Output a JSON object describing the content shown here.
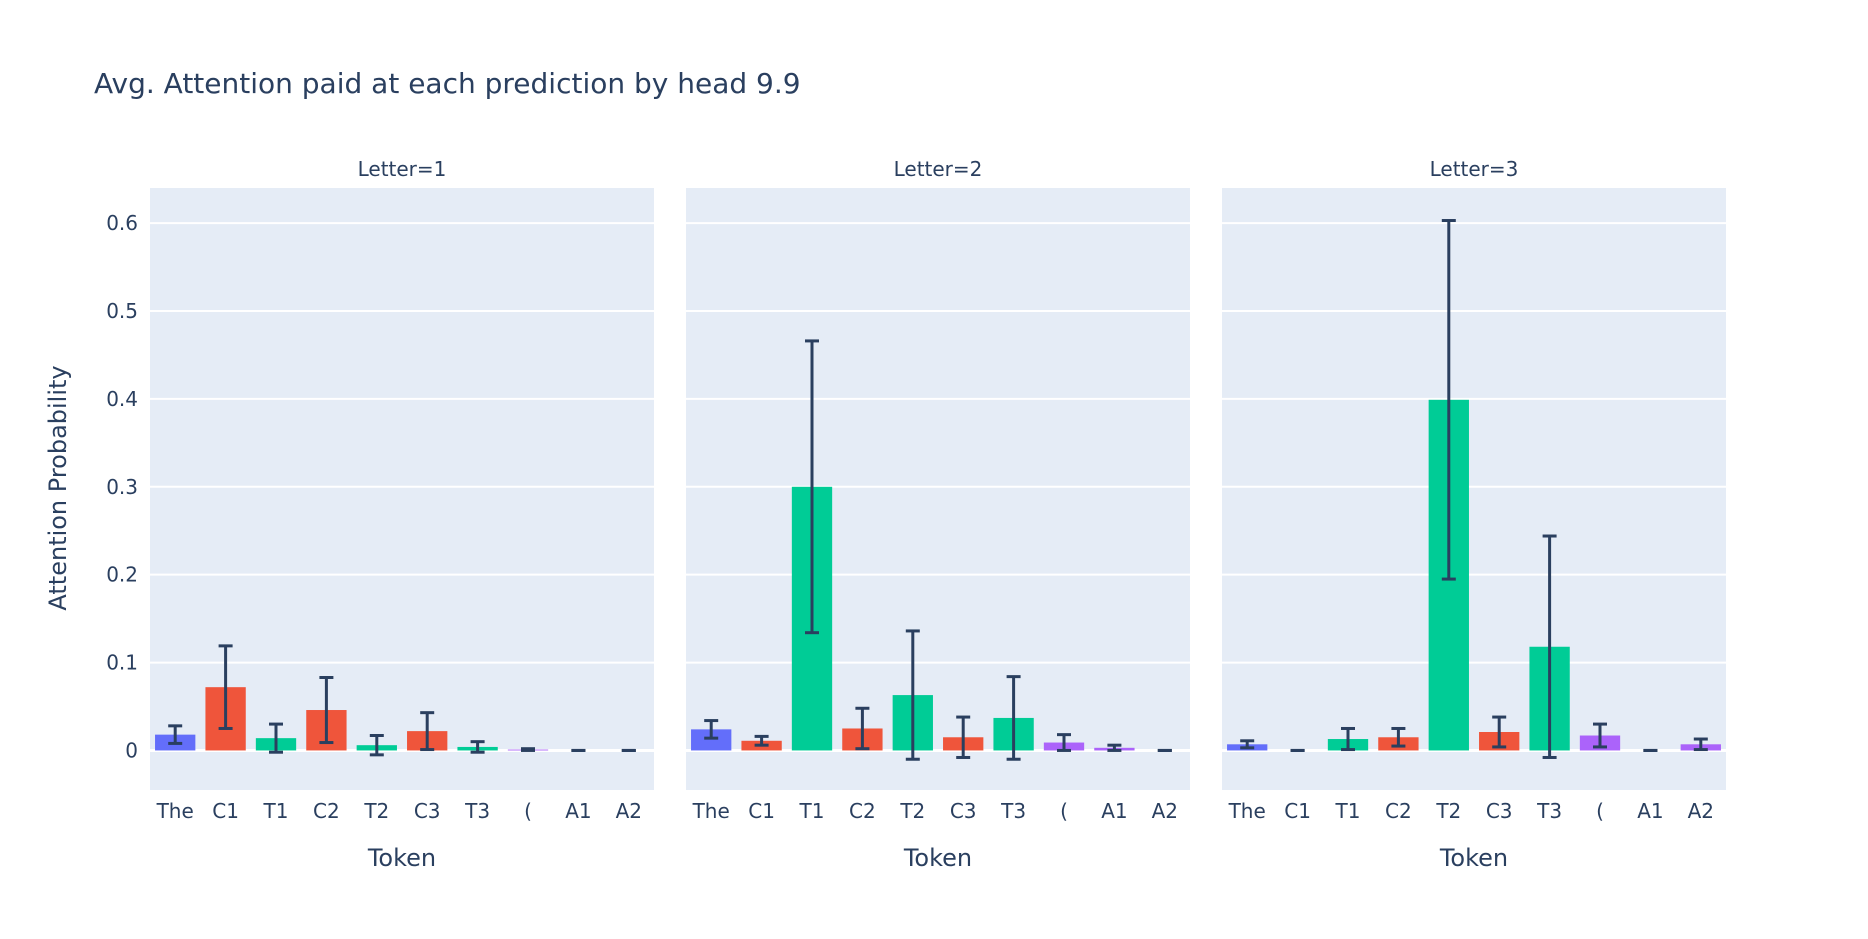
{
  "chart_data": {
    "type": "bar",
    "title": "Avg. Attention paid at each prediction by head 9.9",
    "ylabel": "Attention Probability",
    "ylim": [
      -0.045,
      0.64
    ],
    "yticks": [
      0,
      0.1,
      0.2,
      0.3,
      0.4,
      0.5,
      0.6
    ],
    "ytick_labels": [
      "0",
      "0.1",
      "0.2",
      "0.3",
      "0.4",
      "0.5",
      "0.6"
    ],
    "grid": true,
    "colors": {
      "blue": "#636efa",
      "red": "#ef553b",
      "green": "#00cc96",
      "purple": "#ab63fa",
      "error": "#2a3f5f",
      "plot_bg": "#e5ecf6",
      "grid": "#ffffff"
    },
    "categories": [
      "The",
      "C1",
      "T1",
      "C2",
      "T2",
      "C3",
      "T3",
      "(",
      "A1",
      "A2"
    ],
    "category_colors": [
      "blue",
      "red",
      "green",
      "red",
      "green",
      "red",
      "green",
      "purple",
      "purple",
      "purple"
    ],
    "facets": [
      {
        "label": "Letter=1",
        "xlabel": "Token",
        "values": [
          0.018,
          0.072,
          0.014,
          0.046,
          0.006,
          0.022,
          0.004,
          0.001,
          0.0,
          0.0
        ],
        "error": [
          0.01,
          0.047,
          0.016,
          0.037,
          0.011,
          0.021,
          0.006,
          0.001,
          0.0,
          0.0
        ]
      },
      {
        "label": "Letter=2",
        "xlabel": "Token",
        "values": [
          0.024,
          0.011,
          0.3,
          0.025,
          0.063,
          0.015,
          0.037,
          0.009,
          0.003,
          0.0
        ],
        "error": [
          0.01,
          0.005,
          0.166,
          0.023,
          0.073,
          0.023,
          0.047,
          0.009,
          0.003,
          0.0
        ]
      },
      {
        "label": "Letter=3",
        "xlabel": "Token",
        "values": [
          0.007,
          0.0,
          0.013,
          0.015,
          0.399,
          0.021,
          0.118,
          0.017,
          0.0,
          0.007
        ],
        "error": [
          0.004,
          0.0,
          0.012,
          0.01,
          0.204,
          0.017,
          0.126,
          0.013,
          0.0,
          0.006
        ]
      }
    ]
  }
}
